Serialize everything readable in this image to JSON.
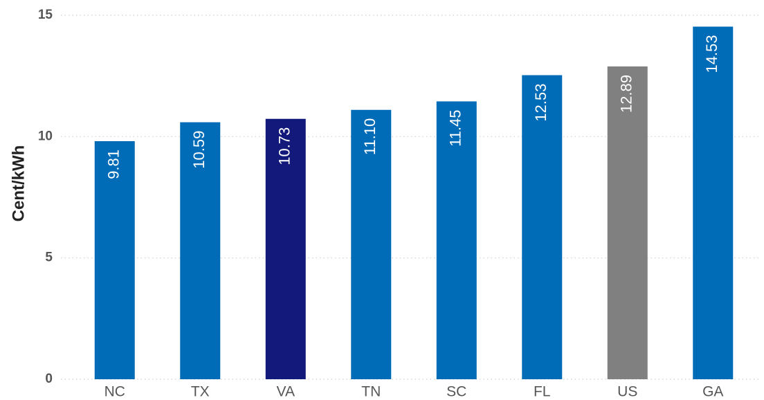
{
  "chart_data": {
    "type": "bar",
    "y_label": "Cent/kWh",
    "categories": [
      "NC",
      "TX",
      "VA",
      "TN",
      "SC",
      "FL",
      "US",
      "GA"
    ],
    "values": [
      9.81,
      10.59,
      10.73,
      11.1,
      11.45,
      12.53,
      12.89,
      14.53
    ],
    "value_labels": [
      "9.81",
      "10.59",
      "10.73",
      "11.10",
      "11.45",
      "12.53",
      "12.89",
      "14.53"
    ],
    "colors": [
      "#006cb7",
      "#006cb7",
      "#12197a",
      "#006cb7",
      "#006cb7",
      "#006cb7",
      "#808080",
      "#006cb7"
    ],
    "ylim": [
      0,
      15
    ],
    "yticks": [
      0,
      5,
      10,
      15
    ],
    "grid": true
  }
}
